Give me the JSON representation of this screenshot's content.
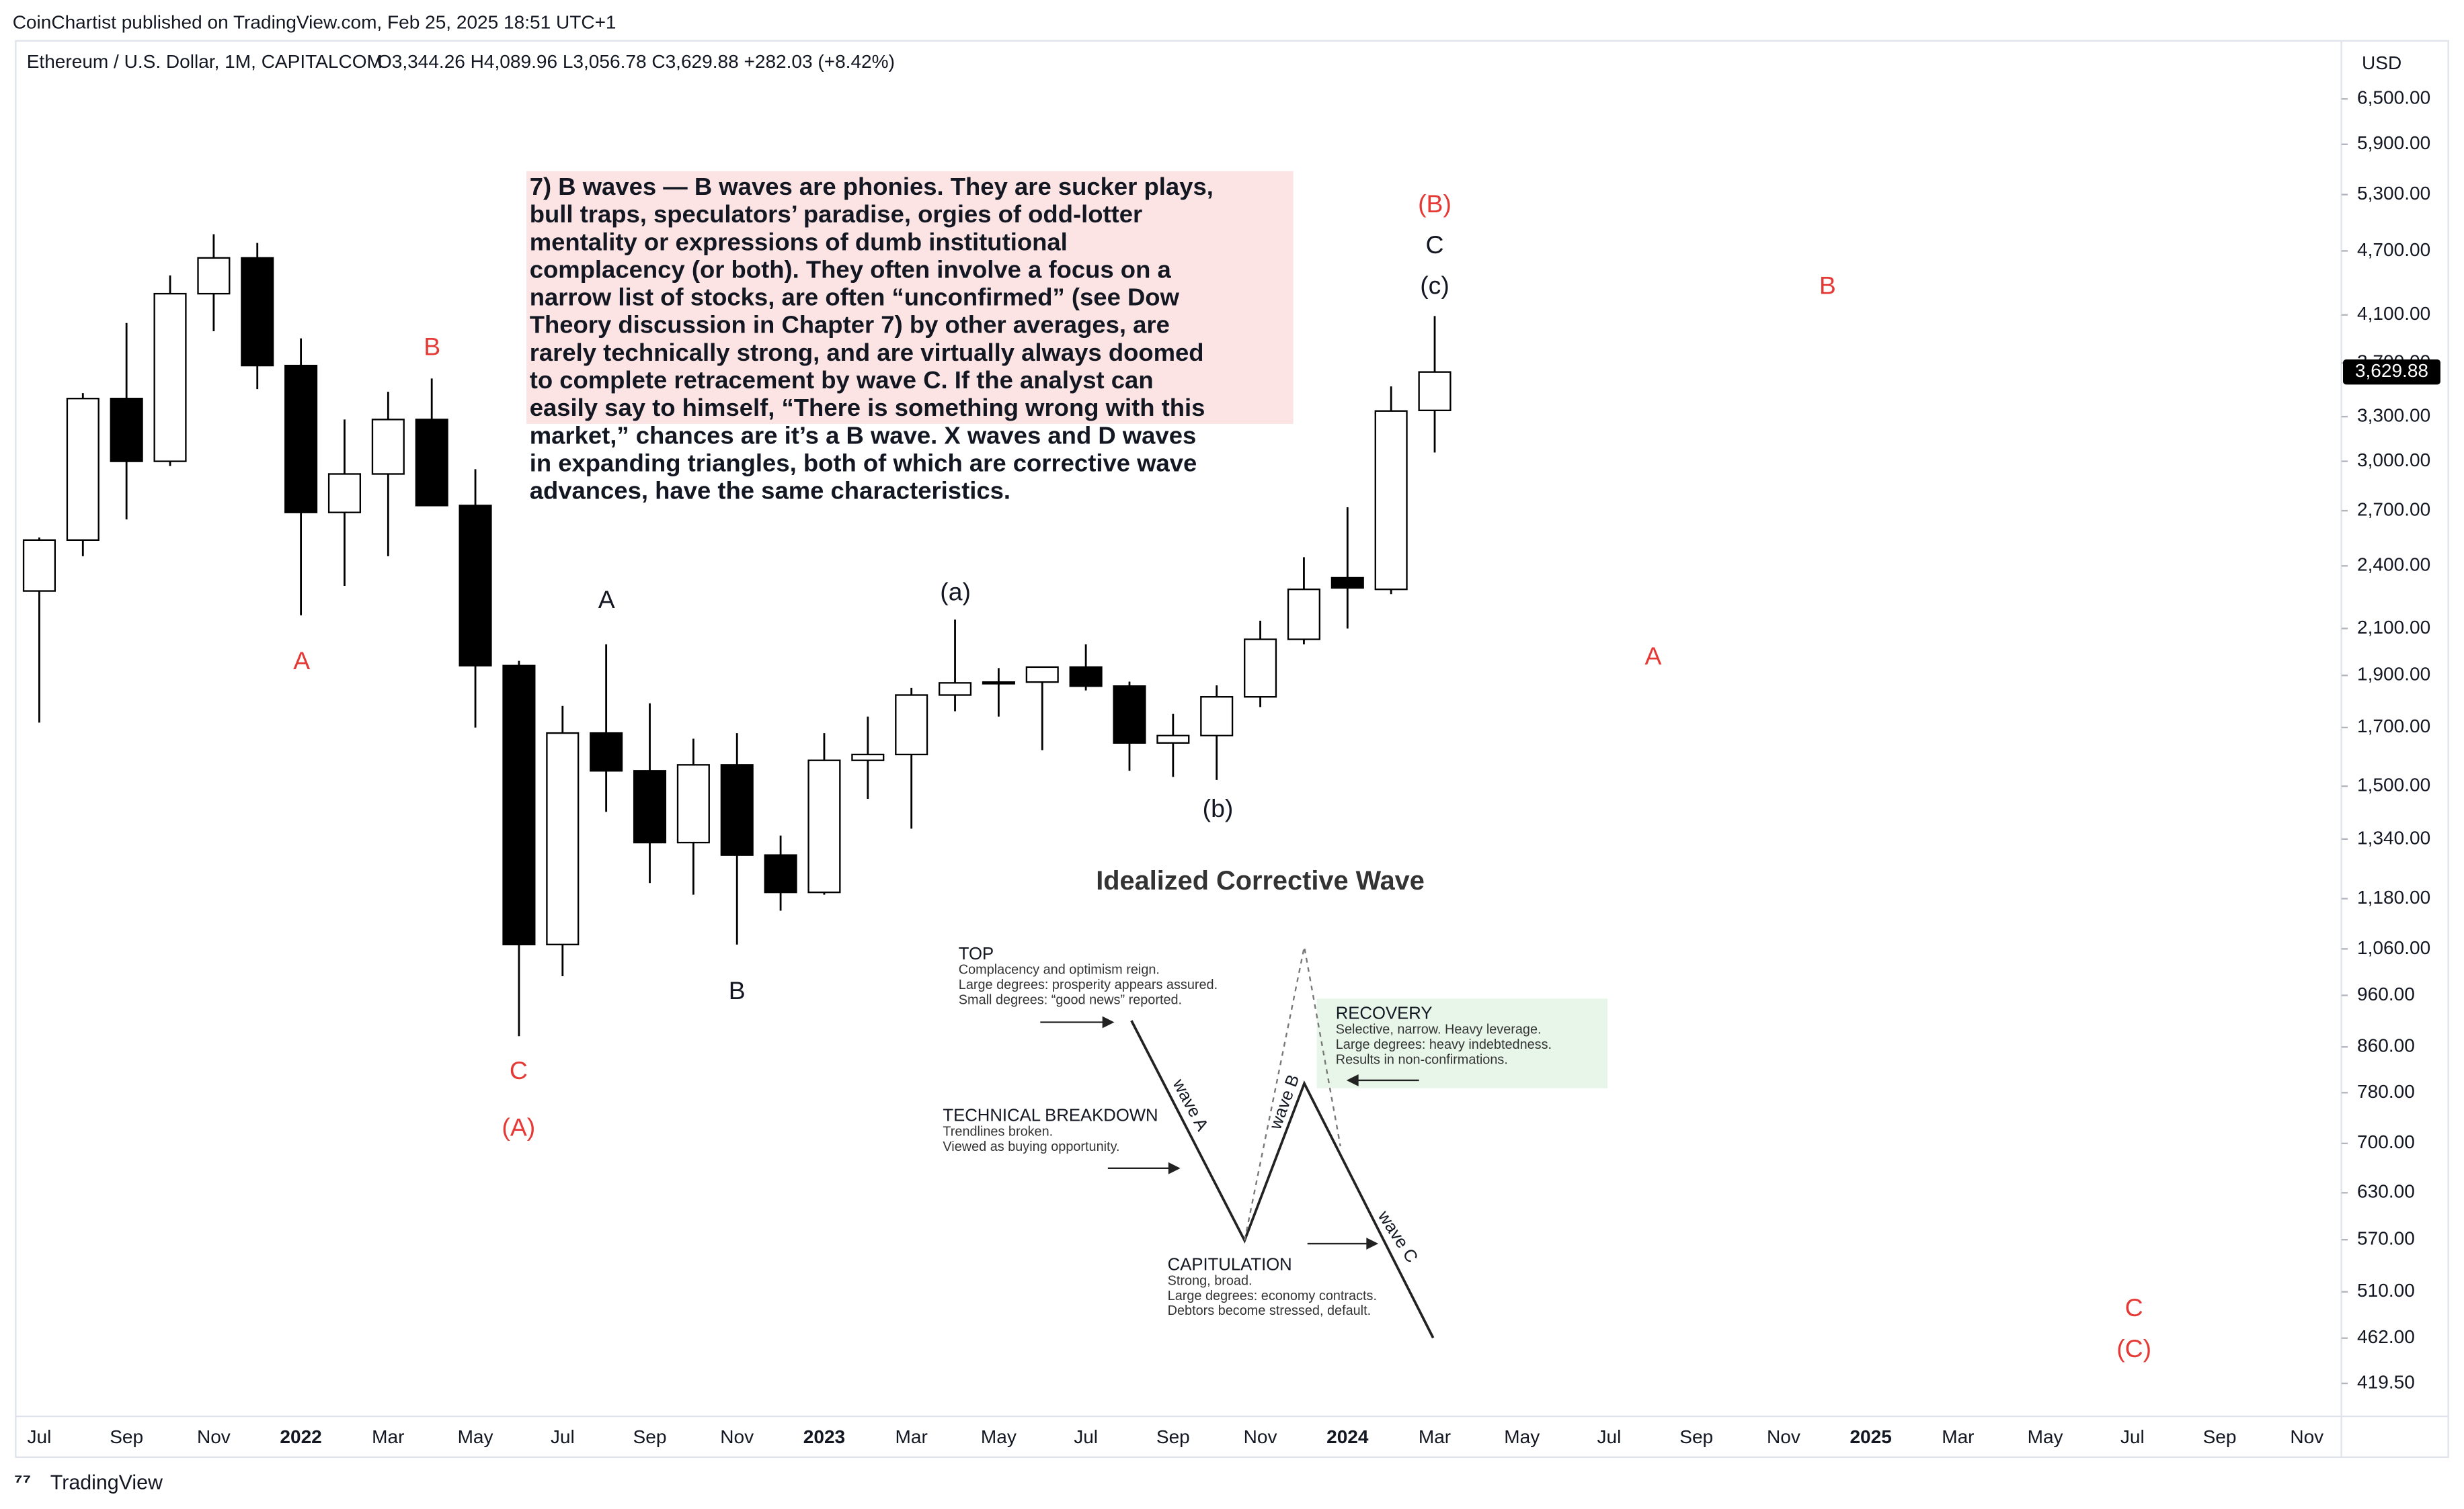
{
  "header": {
    "publisher": "CoinChartist published on TradingView.com, Feb 25, 2025 18:51 UTC+1",
    "symbol": "Ethereum / U.S. Dollar, 1M, CAPITALCOM",
    "ohlc": "O3,344.26 H4,089.96 L3,056.78 C3,629.88 +282.03 (+8.42%)"
  },
  "footer": {
    "brand": "TradingView"
  },
  "chart_data": {
    "type": "candlestick",
    "currency": "USD",
    "log_scale": true,
    "grid": false,
    "up_color": "#ffffff",
    "down_color": "#000000",
    "edge_color": "#000000",
    "x_labels": [
      "Jul",
      "Sep",
      "Nov",
      "2022",
      "Mar",
      "May",
      "Jul",
      "Sep",
      "Nov",
      "2023",
      "Mar",
      "May",
      "Jul",
      "Sep",
      "Nov",
      "2024",
      "Mar",
      "May",
      "Jul",
      "Sep",
      "Nov",
      "2025",
      "Mar",
      "May",
      "Jul",
      "Sep",
      "Nov"
    ],
    "open": [
      2275,
      2536,
      3430,
      3000,
      4290,
      4630,
      3680,
      2690,
      2920,
      3280,
      2730,
      1940,
      1070,
      1680,
      1550,
      1330,
      1570,
      1295,
      1196,
      1585,
      1605,
      1822,
      1870,
      1873,
      1934,
      1857,
      1645,
      1671,
      1815,
      2052,
      2340,
      2283,
      3344.26
    ],
    "high": [
      2550,
      3470,
      4030,
      4460,
      4870,
      4780,
      3900,
      3280,
      3480,
      3580,
      2950,
      1960,
      1780,
      2030,
      1790,
      1660,
      1680,
      1350,
      1680,
      1740,
      1850,
      2140,
      1930,
      1930,
      2030,
      1875,
      1750,
      1860,
      2135,
      2445,
      2720,
      3520,
      4089.96
    ],
    "low": [
      1718,
      2450,
      2650,
      2970,
      3960,
      3500,
      2160,
      2300,
      2450,
      2780,
      1700,
      880,
      1000,
      1420,
      1220,
      1190,
      1070,
      1150,
      1190,
      1460,
      1370,
      1760,
      1740,
      1620,
      1840,
      1550,
      1530,
      1520,
      1776,
      2030,
      2100,
      2260,
      3056.78
    ],
    "close": [
      2536,
      3430,
      3000,
      4290,
      4630,
      3680,
      2690,
      2920,
      3280,
      2730,
      1940,
      1070,
      1680,
      1550,
      1330,
      1570,
      1295,
      1196,
      1585,
      1605,
      1822,
      1870,
      1873,
      1934,
      1857,
      1645,
      1671,
      1815,
      2052,
      2283,
      2290,
      3340,
      3629.88
    ],
    "last_value_label": "3,629.88",
    "ylim": [
      419.5,
      6500
    ],
    "yticks": [
      {
        "value": 6500,
        "label": "6,500.00"
      },
      {
        "value": 5900,
        "label": "5,900.00"
      },
      {
        "value": 5300,
        "label": "5,300.00"
      },
      {
        "value": 4700,
        "label": "4,700.00"
      },
      {
        "value": 4100,
        "label": "4,100.00"
      },
      {
        "value": 3700,
        "label": "3,700.00"
      },
      {
        "value": 3300,
        "label": "3,300.00"
      },
      {
        "value": 3000,
        "label": "3,000.00"
      },
      {
        "value": 2700,
        "label": "2,700.00"
      },
      {
        "value": 2400,
        "label": "2,400.00"
      },
      {
        "value": 2100,
        "label": "2,100.00"
      },
      {
        "value": 1900,
        "label": "1,900.00"
      },
      {
        "value": 1700,
        "label": "1,700.00"
      },
      {
        "value": 1500,
        "label": "1,500.00"
      },
      {
        "value": 1340,
        "label": "1,340.00"
      },
      {
        "value": 1180,
        "label": "1,180.00"
      },
      {
        "value": 1060,
        "label": "1,060.00"
      },
      {
        "value": 960,
        "label": "960.00"
      },
      {
        "value": 860,
        "label": "860.00"
      },
      {
        "value": 780,
        "label": "780.00"
      },
      {
        "value": 700,
        "label": "700.00"
      },
      {
        "value": 630,
        "label": "630.00"
      },
      {
        "value": 570,
        "label": "570.00"
      },
      {
        "value": 510,
        "label": "510.00"
      },
      {
        "value": 462,
        "label": "462.00"
      },
      {
        "value": 419.5,
        "label": "419.50"
      }
    ],
    "annotations": [
      {
        "text": "(B)",
        "color": "#e53935"
      },
      {
        "text": "B",
        "color": "#e53935"
      },
      {
        "text": "A",
        "color": "#e53935"
      },
      {
        "text": "C",
        "color": "#e53935"
      },
      {
        "text": "(A)",
        "color": "#e53935"
      },
      {
        "text": "B",
        "color": "#e53935"
      },
      {
        "text": "A",
        "color": "#e53935"
      },
      {
        "text": "C",
        "color": "#e53935"
      },
      {
        "text": "(C)",
        "color": "#e53935"
      },
      {
        "text": "C",
        "color": "#131722"
      },
      {
        "text": "(c)",
        "color": "#131722"
      },
      {
        "text": "A",
        "color": "#131722"
      },
      {
        "text": "B",
        "color": "#131722"
      },
      {
        "text": "(a)",
        "color": "#131722"
      },
      {
        "text": "(b)",
        "color": "#131722"
      }
    ],
    "note": {
      "highlight": "#fce4e4",
      "lines": [
        "7) B waves — B waves are phonies. They are sucker plays,",
        "bull traps, speculators’ paradise, orgies of odd-lotter",
        "mentality or expressions of dumb institutional",
        "complacency (or both). They often involve a focus on a",
        "narrow list of stocks, are often “unconfirmed” (see Dow",
        "Theory discussion in Chapter 7) by other averages, are",
        "rarely technically strong, and are virtually always doomed",
        "to complete retracement by wave C. If the analyst can",
        "easily say to himself, “There is something wrong with this",
        "market,” chances are it’s a B wave. X waves and D waves",
        "in expanding triangles, both of which are corrective wave",
        "advances, have the same characteristics."
      ]
    }
  },
  "diagram": {
    "title": "Idealized Corrective Wave",
    "waves": [
      "wave A",
      "wave B",
      "wave C"
    ],
    "blocks": [
      {
        "title": "TOP",
        "lines": [
          "Complacency and optimism reign.",
          "Large degrees: prosperity appears assured.",
          "Small degrees: “good news” reported."
        ]
      },
      {
        "title": "TECHNICAL BREAKDOWN",
        "lines": [
          "Trendlines broken.",
          "Viewed as buying opportunity."
        ]
      },
      {
        "title": "CAPITULATION",
        "lines": [
          "Strong, broad.",
          "Large degrees: economy contracts.",
          "Debtors become stressed, default."
        ]
      },
      {
        "title": "RECOVERY",
        "lines": [
          "Selective, narrow. Heavy leverage.",
          "Large degrees: heavy indebtedness.",
          "Results in non-confirmations."
        ]
      }
    ]
  }
}
